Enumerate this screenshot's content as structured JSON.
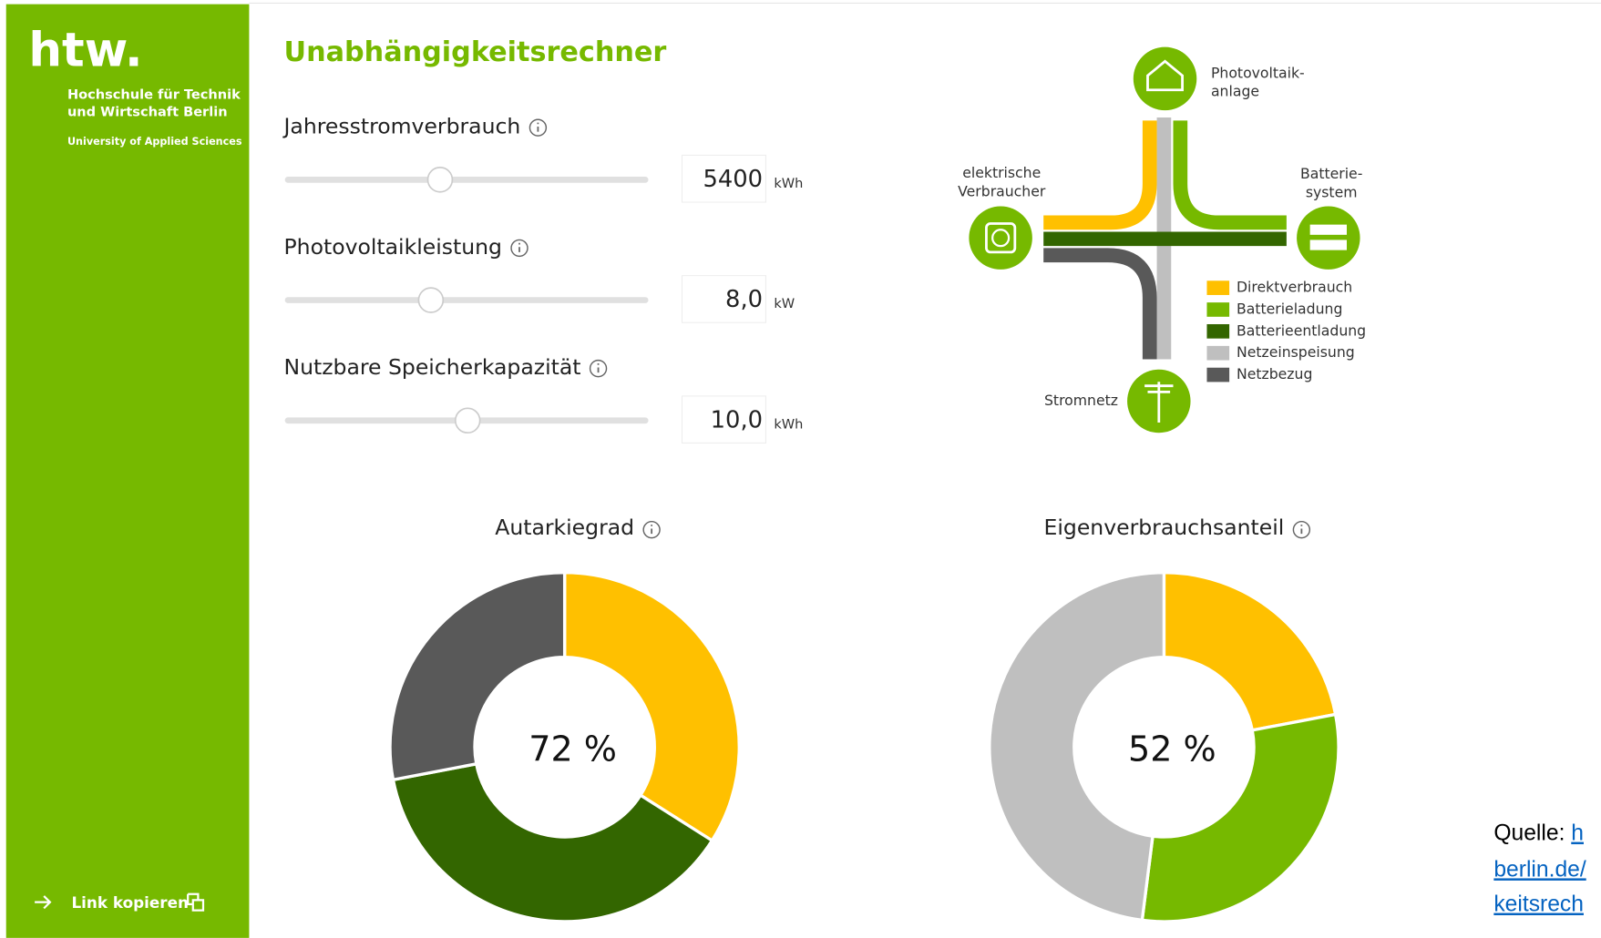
{
  "sidebar": {
    "logo": "htw.",
    "org": [
      "Hochschule für Technik",
      "und Wirtschaft Berlin"
    ],
    "subtitle": "University of Applied Sciences",
    "link": "Link kopieren"
  },
  "title": "Unabhängigkeitsrechner",
  "inputs": [
    {
      "label": "Jahresstromverbrauch",
      "value": "5400",
      "unit": "kWh"
    },
    {
      "label": "Photovoltaikleistung",
      "value": "8,0",
      "unit": "kW"
    },
    {
      "label": "Nutzbare Speicherkapazität",
      "value": "10,0",
      "unit": "kWh"
    }
  ],
  "diagram": {
    "pv": [
      "Photovoltaik-",
      "anlage"
    ],
    "consumer": [
      "elektrische",
      "Verbraucher"
    ],
    "battery": [
      "Batterie-",
      "system"
    ],
    "grid": "Stromnetz",
    "legend": [
      {
        "name": "Direktverbrauch",
        "color": "#ffc000"
      },
      {
        "name": "Batterieladung",
        "color": "#76b900"
      },
      {
        "name": "Batterieentladung",
        "color": "#336600"
      },
      {
        "name": "Netzeinspeisung",
        "color": "#bfbfbf"
      },
      {
        "name": "Netzbezug",
        "color": "#595959"
      }
    ]
  },
  "charts": [
    {
      "type": "donut",
      "title": "Autarkiegrad",
      "center_label": "72 %",
      "segments": [
        {
          "name": "Direktverbrauch",
          "color": "#ffc000",
          "value": 34
        },
        {
          "name": "Batterieentladung",
          "color": "#336600",
          "value": 38
        },
        {
          "name": "Netzbezug",
          "color": "#595959",
          "value": 28
        }
      ]
    },
    {
      "type": "donut",
      "title": "Eigenverbrauchsanteil",
      "center_label": "52 %",
      "segments": [
        {
          "name": "Direktverbrauch",
          "color": "#ffc000",
          "value": 22
        },
        {
          "name": "Batterieladung",
          "color": "#76b900",
          "value": 30
        },
        {
          "name": "Netzeinspeisung",
          "color": "#bfbfbf",
          "value": 48
        }
      ]
    }
  ],
  "source": {
    "prefix": "Quelle: ",
    "lines": [
      "h",
      "berlin.de/",
      "keitsrech"
    ]
  }
}
